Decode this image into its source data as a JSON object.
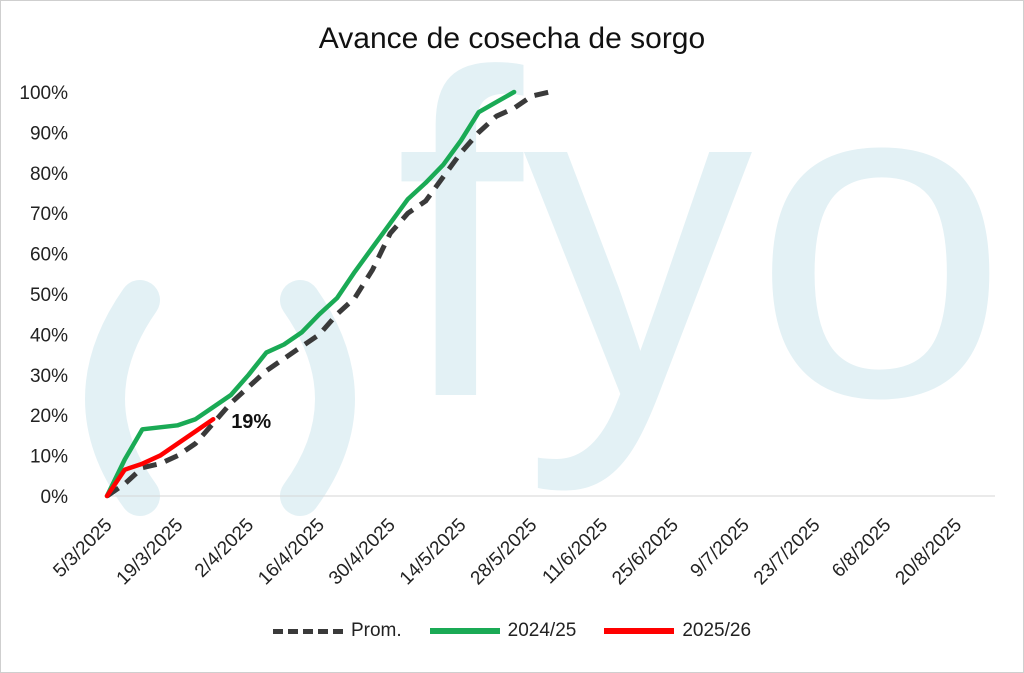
{
  "chart_data": {
    "type": "line",
    "title": "Avance de cosecha de sorgo",
    "xlabel": "",
    "ylabel": "",
    "ylim": [
      0,
      1
    ],
    "y_ticks": [
      "0%",
      "10%",
      "20%",
      "30%",
      "40%",
      "50%",
      "60%",
      "70%",
      "80%",
      "90%",
      "100%"
    ],
    "x_tick_labels": [
      "5/3/2025",
      "19/3/2025",
      "2/4/2025",
      "16/4/2025",
      "30/4/2025",
      "14/5/2025",
      "28/5/2025",
      "11/6/2025",
      "25/6/2025",
      "9/7/2025",
      "23/7/2025",
      "6/8/2025",
      "20/8/2025"
    ],
    "grid": false,
    "legend_position": "bottom",
    "watermark": "fyo",
    "annotation": {
      "text": "19%",
      "series": "2025/26"
    },
    "series": [
      {
        "name": "Prom.",
        "color": "#3a3a3a",
        "style": "dashed",
        "points": [
          [
            0,
            0
          ],
          [
            0.5,
            0.03
          ],
          [
            1,
            0.07
          ],
          [
            1.5,
            0.08
          ],
          [
            2,
            0.1
          ],
          [
            2.5,
            0.13
          ],
          [
            3,
            0.18
          ],
          [
            3.5,
            0.23
          ],
          [
            4,
            0.27
          ],
          [
            4.5,
            0.31
          ],
          [
            5,
            0.34
          ],
          [
            5.5,
            0.37
          ],
          [
            6,
            0.4
          ],
          [
            6.5,
            0.45
          ],
          [
            7,
            0.49
          ],
          [
            7.5,
            0.56
          ],
          [
            8,
            0.65
          ],
          [
            8.5,
            0.7
          ],
          [
            9,
            0.73
          ],
          [
            9.5,
            0.79
          ],
          [
            10,
            0.85
          ],
          [
            10.5,
            0.9
          ],
          [
            11,
            0.94
          ],
          [
            11.5,
            0.96
          ],
          [
            12,
            0.99
          ],
          [
            12.5,
            1.0
          ]
        ]
      },
      {
        "name": "2024/25",
        "color": "#1aaa55",
        "style": "solid",
        "points": [
          [
            0,
            0
          ],
          [
            0.5,
            0.09
          ],
          [
            1,
            0.165
          ],
          [
            1.5,
            0.17
          ],
          [
            2,
            0.175
          ],
          [
            2.5,
            0.19
          ],
          [
            3,
            0.22
          ],
          [
            3.5,
            0.25
          ],
          [
            4,
            0.3
          ],
          [
            4.5,
            0.355
          ],
          [
            5,
            0.375
          ],
          [
            5.5,
            0.405
          ],
          [
            6,
            0.45
          ],
          [
            6.5,
            0.49
          ],
          [
            7,
            0.555
          ],
          [
            7.5,
            0.615
          ],
          [
            8,
            0.675
          ],
          [
            8.5,
            0.735
          ],
          [
            9,
            0.775
          ],
          [
            9.5,
            0.82
          ],
          [
            10,
            0.88
          ],
          [
            10.5,
            0.95
          ],
          [
            11,
            0.975
          ],
          [
            11.5,
            1.0
          ]
        ]
      },
      {
        "name": "2025/26",
        "color": "#ff0000",
        "style": "solid",
        "points": [
          [
            0,
            0
          ],
          [
            0.5,
            0.065
          ],
          [
            1,
            0.08
          ],
          [
            1.5,
            0.1
          ],
          [
            2,
            0.13
          ],
          [
            2.5,
            0.16
          ],
          [
            3,
            0.19
          ]
        ]
      }
    ]
  }
}
